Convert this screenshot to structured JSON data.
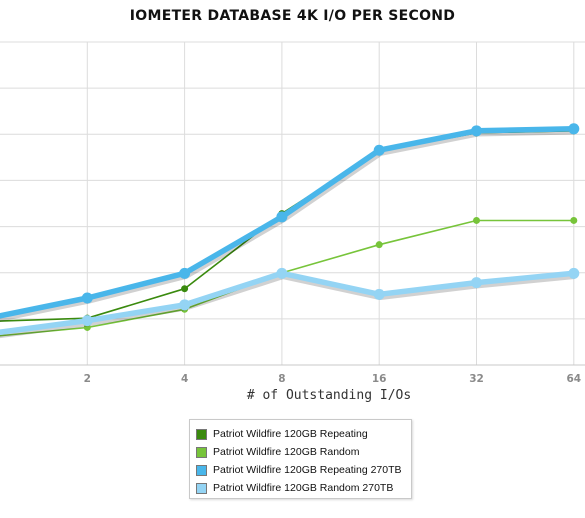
{
  "chart_data": {
    "type": "line",
    "title": "IOMETER DATABASE 4K I/O PER SECOND",
    "xlabel": "# of Outstanding I/Os",
    "ylabel": "",
    "x": [
      "1",
      "2",
      "4",
      "8",
      "16",
      "32",
      "64"
    ],
    "x_tick_labels": [
      "2",
      "4",
      "8",
      "16",
      "32",
      "64"
    ],
    "ylim": [
      0,
      8
    ],
    "grid": true,
    "legend_position": "bottom-center",
    "series": [
      {
        "name": "Patriot Wildfire 120GB Repeating",
        "color": "#3a8a0e",
        "line_width": 1.6,
        "marker": 7,
        "values": [
          1.08,
          1.16,
          1.89,
          3.75,
          5.3,
          5.75,
          5.8
        ]
      },
      {
        "name": "Patriot Wildfire 120GB Random",
        "color": "#77c43a",
        "line_width": 1.6,
        "marker": 7,
        "values": [
          0.7,
          0.93,
          1.38,
          2.28,
          2.98,
          3.58,
          3.58
        ]
      },
      {
        "name": "Patriot Wildfire 120GB Repeating 270TB",
        "color": "#49b6ea",
        "line_width": 5.5,
        "marker": 11,
        "values": [
          1.17,
          1.66,
          2.27,
          3.67,
          5.32,
          5.8,
          5.85
        ]
      },
      {
        "name": "Patriot Wildfire 120GB Random 270TB",
        "color": "#94d4f4",
        "line_width": 5.5,
        "marker": 11,
        "values": [
          0.78,
          1.1,
          1.49,
          2.27,
          1.75,
          2.04,
          2.27
        ]
      }
    ]
  }
}
